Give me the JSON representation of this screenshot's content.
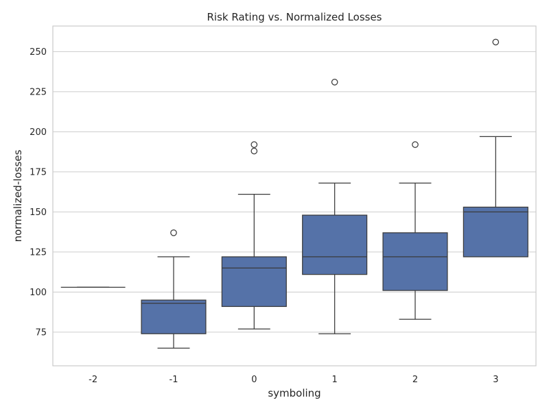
{
  "chart_data": {
    "type": "boxplot",
    "title": "Risk Rating vs. Normalized Losses",
    "xlabel": "symboling",
    "ylabel": "normalized-losses",
    "categories": [
      "-2",
      "-1",
      "0",
      "1",
      "2",
      "3"
    ],
    "ylim": [
      54,
      266
    ],
    "yticks": [
      75,
      100,
      125,
      150,
      175,
      200,
      225,
      250
    ],
    "grid": true,
    "box_color": "#5572a8",
    "line_color": "#3a3a3a",
    "boxes": [
      {
        "category": "-2",
        "whislo": 103,
        "q1": 103,
        "median": 103,
        "q3": 103,
        "whishi": 103,
        "fliers": []
      },
      {
        "category": "-1",
        "whislo": 65,
        "q1": 74,
        "median": 93,
        "q3": 95,
        "whishi": 122,
        "fliers": [
          137
        ]
      },
      {
        "category": "0",
        "whislo": 77,
        "q1": 91,
        "median": 115,
        "q3": 122,
        "whishi": 161,
        "fliers": [
          188,
          192
        ]
      },
      {
        "category": "1",
        "whislo": 74,
        "q1": 111,
        "median": 122,
        "q3": 148,
        "whishi": 168,
        "fliers": [
          231
        ]
      },
      {
        "category": "2",
        "whislo": 83,
        "q1": 101,
        "median": 122,
        "q3": 137,
        "whishi": 168,
        "fliers": [
          192
        ]
      },
      {
        "category": "3",
        "whislo": 122,
        "q1": 122,
        "median": 150,
        "q3": 153,
        "whishi": 197,
        "fliers": [
          256
        ]
      }
    ]
  }
}
